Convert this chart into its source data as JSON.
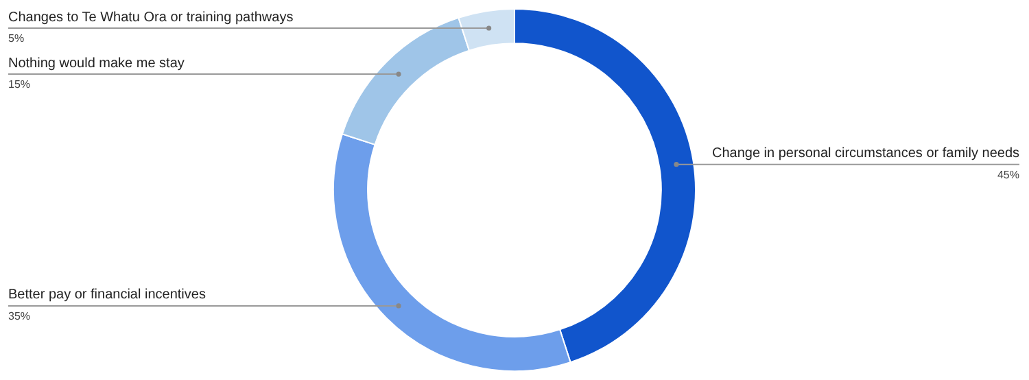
{
  "chart_data": {
    "type": "donut",
    "categories": [
      "Change in personal circumstances or family needs",
      "Better pay or financial incentives",
      "Nothing would make me stay",
      "Changes to Te Whatu Ora or training pathways"
    ],
    "values": [
      45,
      35,
      15,
      5
    ],
    "colors": [
      "#1155cc",
      "#6d9eeb",
      "#9fc5e8",
      "#cfe2f3"
    ],
    "value_labels": [
      "45%",
      "35%",
      "15%",
      "5%"
    ],
    "legend": false
  }
}
